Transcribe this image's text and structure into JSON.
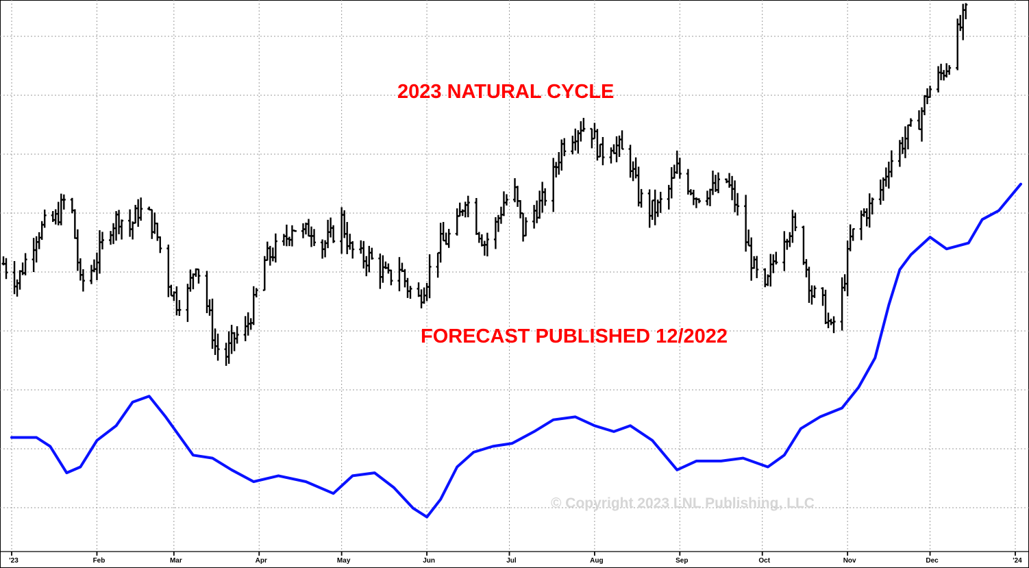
{
  "chart_data": {
    "type": "line",
    "title": "",
    "annotations": {
      "cycle_title": "2023 NATURAL CYCLE",
      "forecast_note": "FORECAST PUBLISHED 12/2022",
      "copyright": "© Copyright 2023 LNL Publishing, LLC"
    },
    "x_axis": {
      "ticks": [
        {
          "label": "'23",
          "date": "2023-01-01"
        },
        {
          "label": "Feb",
          "date": "2023-02-01"
        },
        {
          "label": "Mar",
          "date": "2023-03-01"
        },
        {
          "label": "Apr",
          "date": "2023-04-01"
        },
        {
          "label": "May",
          "date": "2023-05-01"
        },
        {
          "label": "Jun",
          "date": "2023-06-01"
        },
        {
          "label": "Jul",
          "date": "2023-07-01"
        },
        {
          "label": "Aug",
          "date": "2023-08-01"
        },
        {
          "label": "Sep",
          "date": "2023-09-01"
        },
        {
          "label": "Oct",
          "date": "2023-10-01"
        },
        {
          "label": "Nov",
          "date": "2023-11-01"
        },
        {
          "label": "Dec",
          "date": "2023-12-01"
        },
        {
          "label": "'24",
          "date": "2024-01-01"
        }
      ],
      "range": [
        "2022-12-29",
        "2024-01-03"
      ]
    },
    "y_axis": {
      "labels_shown": false,
      "gridlines": 9,
      "range": [
        0,
        9
      ]
    },
    "grid": true,
    "series": [
      {
        "id": "price",
        "style": "ohlc-bars",
        "color": "#000000",
        "points": [
          {
            "date": "2022-12-29",
            "value": 4.7
          },
          {
            "date": "2023-01-03",
            "value": 4.4
          },
          {
            "date": "2023-01-06",
            "value": 4.75
          },
          {
            "date": "2023-01-10",
            "value": 5.2
          },
          {
            "date": "2023-01-13",
            "value": 5.35
          },
          {
            "date": "2023-01-17",
            "value": 5.45
          },
          {
            "date": "2023-01-20",
            "value": 5.75
          },
          {
            "date": "2023-01-23",
            "value": 5.55
          },
          {
            "date": "2023-01-26",
            "value": 4.35
          },
          {
            "date": "2023-01-30",
            "value": 4.6
          },
          {
            "date": "2023-02-02",
            "value": 4.9
          },
          {
            "date": "2023-02-06",
            "value": 5.35
          },
          {
            "date": "2023-02-09",
            "value": 5.5
          },
          {
            "date": "2023-02-13",
            "value": 5.3
          },
          {
            "date": "2023-02-16",
            "value": 5.6
          },
          {
            "date": "2023-02-20",
            "value": 5.5
          },
          {
            "date": "2023-02-23",
            "value": 5.15
          },
          {
            "date": "2023-02-27",
            "value": 4.4
          },
          {
            "date": "2023-03-02",
            "value": 4.05
          },
          {
            "date": "2023-03-06",
            "value": 4.2
          },
          {
            "date": "2023-03-09",
            "value": 4.75
          },
          {
            "date": "2023-03-13",
            "value": 4.0
          },
          {
            "date": "2023-03-16",
            "value": 3.3
          },
          {
            "date": "2023-03-20",
            "value": 3.15
          },
          {
            "date": "2023-03-23",
            "value": 3.45
          },
          {
            "date": "2023-03-27",
            "value": 3.55
          },
          {
            "date": "2023-03-30",
            "value": 4.0
          },
          {
            "date": "2023-04-03",
            "value": 4.75
          },
          {
            "date": "2023-04-06",
            "value": 4.9
          },
          {
            "date": "2023-04-10",
            "value": 5.05
          },
          {
            "date": "2023-04-13",
            "value": 5.35
          },
          {
            "date": "2023-04-17",
            "value": 5.2
          },
          {
            "date": "2023-04-20",
            "value": 5.3
          },
          {
            "date": "2023-04-24",
            "value": 5.0
          },
          {
            "date": "2023-04-27",
            "value": 5.15
          },
          {
            "date": "2023-05-01",
            "value": 5.45
          },
          {
            "date": "2023-05-04",
            "value": 4.95
          },
          {
            "date": "2023-05-08",
            "value": 4.8
          },
          {
            "date": "2023-05-11",
            "value": 4.8
          },
          {
            "date": "2023-05-15",
            "value": 4.6
          },
          {
            "date": "2023-05-18",
            "value": 4.45
          },
          {
            "date": "2023-05-22",
            "value": 4.65
          },
          {
            "date": "2023-05-25",
            "value": 4.3
          },
          {
            "date": "2023-05-29",
            "value": 4.1
          },
          {
            "date": "2023-06-01",
            "value": 4.45
          },
          {
            "date": "2023-06-05",
            "value": 5.0
          },
          {
            "date": "2023-06-08",
            "value": 5.1
          },
          {
            "date": "2023-06-12",
            "value": 5.35
          },
          {
            "date": "2023-06-15",
            "value": 5.85
          },
          {
            "date": "2023-06-19",
            "value": 5.35
          },
          {
            "date": "2023-06-22",
            "value": 5.05
          },
          {
            "date": "2023-06-26",
            "value": 5.35
          },
          {
            "date": "2023-06-29",
            "value": 5.75
          },
          {
            "date": "2023-07-03",
            "value": 5.9
          },
          {
            "date": "2023-07-06",
            "value": 5.25
          },
          {
            "date": "2023-07-10",
            "value": 5.6
          },
          {
            "date": "2023-07-13",
            "value": 5.75
          },
          {
            "date": "2023-07-17",
            "value": 6.2
          },
          {
            "date": "2023-07-20",
            "value": 6.7
          },
          {
            "date": "2023-07-24",
            "value": 6.9
          },
          {
            "date": "2023-07-27",
            "value": 7.05
          },
          {
            "date": "2023-07-31",
            "value": 6.95
          },
          {
            "date": "2023-08-03",
            "value": 6.55
          },
          {
            "date": "2023-08-07",
            "value": 6.75
          },
          {
            "date": "2023-08-10",
            "value": 6.65
          },
          {
            "date": "2023-08-14",
            "value": 6.4
          },
          {
            "date": "2023-08-17",
            "value": 5.85
          },
          {
            "date": "2023-08-21",
            "value": 5.6
          },
          {
            "date": "2023-08-24",
            "value": 5.65
          },
          {
            "date": "2023-08-28",
            "value": 5.95
          },
          {
            "date": "2023-08-31",
            "value": 6.3
          },
          {
            "date": "2023-09-04",
            "value": 6.05
          },
          {
            "date": "2023-09-07",
            "value": 5.85
          },
          {
            "date": "2023-09-11",
            "value": 5.95
          },
          {
            "date": "2023-09-14",
            "value": 5.95
          },
          {
            "date": "2023-09-18",
            "value": 6.1
          },
          {
            "date": "2023-09-21",
            "value": 5.75
          },
          {
            "date": "2023-09-25",
            "value": 5.1
          },
          {
            "date": "2023-09-28",
            "value": 4.6
          },
          {
            "date": "2023-10-02",
            "value": 4.2
          },
          {
            "date": "2023-10-05",
            "value": 4.75
          },
          {
            "date": "2023-10-09",
            "value": 5.2
          },
          {
            "date": "2023-10-12",
            "value": 5.35
          },
          {
            "date": "2023-10-16",
            "value": 4.85
          },
          {
            "date": "2023-10-19",
            "value": 4.2
          },
          {
            "date": "2023-10-23",
            "value": 4.0
          },
          {
            "date": "2023-10-26",
            "value": 3.55
          },
          {
            "date": "2023-10-30",
            "value": 4.2
          },
          {
            "date": "2023-11-02",
            "value": 5.1
          },
          {
            "date": "2023-11-06",
            "value": 5.5
          },
          {
            "date": "2023-11-09",
            "value": 5.65
          },
          {
            "date": "2023-11-13",
            "value": 5.95
          },
          {
            "date": "2023-11-16",
            "value": 6.4
          },
          {
            "date": "2023-11-20",
            "value": 6.7
          },
          {
            "date": "2023-11-23",
            "value": 6.9
          },
          {
            "date": "2023-11-27",
            "value": 7.15
          },
          {
            "date": "2023-11-30",
            "value": 7.6
          },
          {
            "date": "2023-12-04",
            "value": 7.85
          },
          {
            "date": "2023-12-07",
            "value": 8.05
          },
          {
            "date": "2023-12-11",
            "value": 8.6
          },
          {
            "date": "2023-12-14",
            "value": 8.95
          }
        ]
      },
      {
        "id": "forecast",
        "style": "line",
        "color": "#0a12ff",
        "points": [
          {
            "date": "2023-01-01",
            "value": 1.75
          },
          {
            "date": "2023-01-10",
            "value": 1.75
          },
          {
            "date": "2023-01-15",
            "value": 1.6
          },
          {
            "date": "2023-01-21",
            "value": 1.15
          },
          {
            "date": "2023-01-26",
            "value": 1.25
          },
          {
            "date": "2023-02-01",
            "value": 1.7
          },
          {
            "date": "2023-02-08",
            "value": 1.95
          },
          {
            "date": "2023-02-14",
            "value": 2.35
          },
          {
            "date": "2023-02-20",
            "value": 2.45
          },
          {
            "date": "2023-02-26",
            "value": 2.1
          },
          {
            "date": "2023-03-08",
            "value": 1.45
          },
          {
            "date": "2023-03-15",
            "value": 1.4
          },
          {
            "date": "2023-03-22",
            "value": 1.2
          },
          {
            "date": "2023-03-30",
            "value": 1.0
          },
          {
            "date": "2023-04-08",
            "value": 1.1
          },
          {
            "date": "2023-04-18",
            "value": 1.0
          },
          {
            "date": "2023-04-28",
            "value": 0.8
          },
          {
            "date": "2023-05-05",
            "value": 1.1
          },
          {
            "date": "2023-05-13",
            "value": 1.15
          },
          {
            "date": "2023-05-20",
            "value": 0.9
          },
          {
            "date": "2023-05-27",
            "value": 0.55
          },
          {
            "date": "2023-06-01",
            "value": 0.4
          },
          {
            "date": "2023-06-06",
            "value": 0.7
          },
          {
            "date": "2023-06-12",
            "value": 1.25
          },
          {
            "date": "2023-06-18",
            "value": 1.5
          },
          {
            "date": "2023-06-25",
            "value": 1.6
          },
          {
            "date": "2023-07-02",
            "value": 1.65
          },
          {
            "date": "2023-07-10",
            "value": 1.85
          },
          {
            "date": "2023-07-17",
            "value": 2.05
          },
          {
            "date": "2023-07-25",
            "value": 2.1
          },
          {
            "date": "2023-08-01",
            "value": 1.95
          },
          {
            "date": "2023-08-08",
            "value": 1.85
          },
          {
            "date": "2023-08-14",
            "value": 1.95
          },
          {
            "date": "2023-08-22",
            "value": 1.7
          },
          {
            "date": "2023-08-31",
            "value": 1.2
          },
          {
            "date": "2023-09-07",
            "value": 1.35
          },
          {
            "date": "2023-09-16",
            "value": 1.35
          },
          {
            "date": "2023-09-24",
            "value": 1.4
          },
          {
            "date": "2023-10-03",
            "value": 1.25
          },
          {
            "date": "2023-10-09",
            "value": 1.45
          },
          {
            "date": "2023-10-15",
            "value": 1.9
          },
          {
            "date": "2023-10-22",
            "value": 2.1
          },
          {
            "date": "2023-10-30",
            "value": 2.25
          },
          {
            "date": "2023-11-05",
            "value": 2.6
          },
          {
            "date": "2023-11-11",
            "value": 3.1
          },
          {
            "date": "2023-11-16",
            "value": 4.0
          },
          {
            "date": "2023-11-20",
            "value": 4.6
          },
          {
            "date": "2023-11-24",
            "value": 4.85
          },
          {
            "date": "2023-12-01",
            "value": 5.15
          },
          {
            "date": "2023-12-07",
            "value": 4.95
          },
          {
            "date": "2023-12-15",
            "value": 5.05
          },
          {
            "date": "2023-12-20",
            "value": 5.45
          },
          {
            "date": "2023-12-26",
            "value": 5.6
          },
          {
            "date": "2024-01-03",
            "value": 6.05
          }
        ]
      }
    ]
  }
}
